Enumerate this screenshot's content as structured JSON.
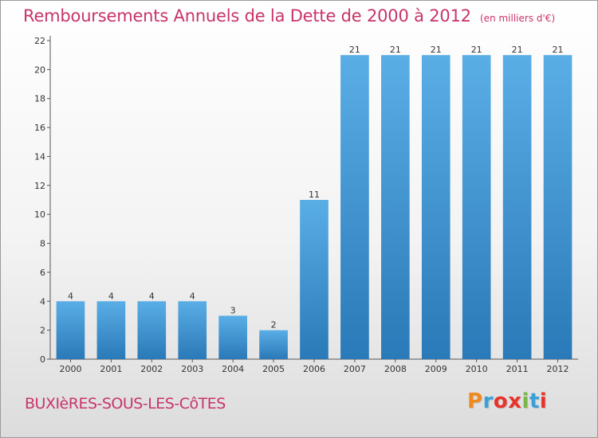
{
  "header": {
    "title": "Remboursements Annuels de la Dette de 2000 à 2012",
    "unit": "(en milliers d'€)"
  },
  "footer": {
    "place": "BUXIèRES-SOUS-LES-CôTES",
    "logo": "Proxiti"
  },
  "colors": {
    "title": "#c8346b",
    "bar_top": "#5aaee6",
    "bar_bottom": "#2a79b8",
    "logo": [
      "#f08a1e",
      "#3aa0d8",
      "#e8332a",
      "#e8332a",
      "#7ab648",
      "#3aa0d8",
      "#e8332a"
    ]
  },
  "chart_data": {
    "type": "bar",
    "categories": [
      "2000",
      "2001",
      "2002",
      "2003",
      "2004",
      "2005",
      "2006",
      "2007",
      "2008",
      "2009",
      "2010",
      "2011",
      "2012"
    ],
    "values": [
      4,
      4,
      4,
      4,
      3,
      2,
      11,
      21,
      21,
      21,
      21,
      21,
      21
    ],
    "title": "Remboursements Annuels de la Dette de 2000 à 2012",
    "ylim": [
      0,
      22
    ],
    "yticks": [
      0,
      2,
      4,
      6,
      8,
      10,
      12,
      14,
      16,
      18,
      20,
      22
    ],
    "grid": false,
    "legend": "none"
  }
}
